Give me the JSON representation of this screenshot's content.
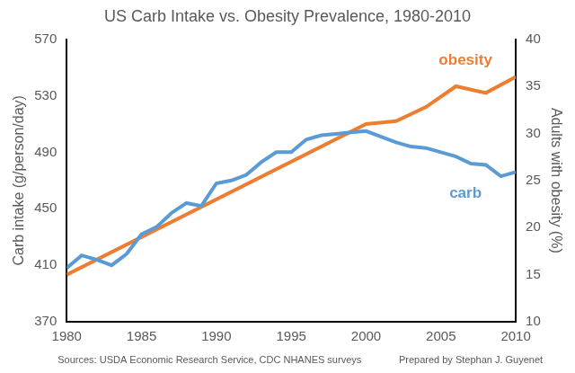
{
  "chart_data": {
    "type": "line",
    "title": "US Carb Intake vs. Obesity Prevalence, 1980-2010",
    "y_label": "Carb intake (g/person/day)",
    "y2_label": "Adults with obesity (%)",
    "xlim": [
      1980,
      2010
    ],
    "xticks": [
      1980,
      1985,
      1990,
      1995,
      2000,
      2005,
      2010
    ],
    "ylim": [
      370,
      570
    ],
    "yticks": [
      370,
      410,
      450,
      490,
      530,
      570
    ],
    "y2lim": [
      10,
      40
    ],
    "y2ticks": [
      10,
      15,
      20,
      25,
      30,
      35,
      40
    ],
    "grid": false,
    "series": [
      {
        "name": "carb",
        "color": "#5b9bd5",
        "axis": "y",
        "x": [
          1980,
          1981,
          1982,
          1983,
          1984,
          1985,
          1986,
          1987,
          1988,
          1989,
          1990,
          1991,
          1992,
          1993,
          1994,
          1995,
          1996,
          1997,
          1998,
          1999,
          2000,
          2001,
          2002,
          2003,
          2004,
          2005,
          2006,
          2007,
          2008,
          2009,
          2010
        ],
        "values": [
          408,
          417,
          414,
          410,
          418,
          432,
          437,
          447,
          454,
          452,
          468,
          470,
          474,
          483,
          490,
          490,
          499,
          502,
          503,
          504,
          505,
          501,
          497,
          494,
          493,
          490,
          487,
          482,
          481,
          473,
          476
        ]
      },
      {
        "name": "obesity",
        "color": "#ed7d31",
        "axis": "y2",
        "x": [
          1980,
          2000,
          2002,
          2004,
          2006,
          2008,
          2010
        ],
        "values": [
          15,
          31,
          31.3,
          32.8,
          35,
          34.3,
          36
        ]
      }
    ],
    "source": "Sources: USDA Economic Research Service, CDC NHANES surveys",
    "credit": "Prepared by Stephan J. Guyenet"
  }
}
